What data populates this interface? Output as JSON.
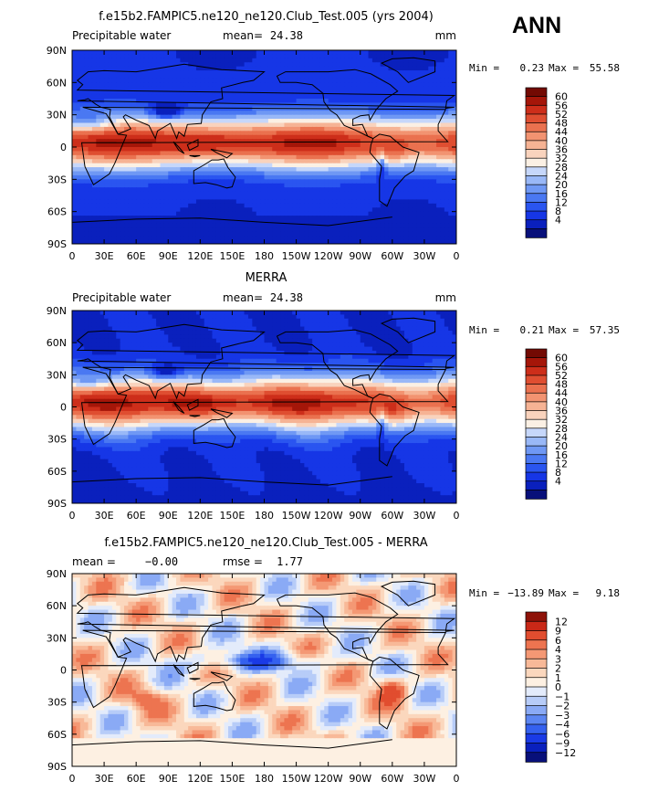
{
  "season": "ANN",
  "colors": {
    "abs_scale": [
      "#08107a",
      "#0a20bd",
      "#1636e6",
      "#2a55f0",
      "#4a78f2",
      "#6f98f4",
      "#99b8f7",
      "#c6d7fa",
      "#fbf0e4",
      "#f9d3bd",
      "#f6b394",
      "#f29371",
      "#ea714f",
      "#df4e31",
      "#cd2e1a",
      "#a51609",
      "#730a03"
    ],
    "diff_scale": [
      "#08107a",
      "#0a20bd",
      "#1a3ae6",
      "#3561ef",
      "#5c86f2",
      "#8aaaf5",
      "#b7ccf8",
      "#e3ebfb",
      "#fdf0e2",
      "#fbd7bd",
      "#f8b998",
      "#f49874",
      "#ed7450",
      "#e14d2f",
      "#c92817",
      "#8e1208"
    ]
  },
  "chart_data": [
    {
      "type": "heatmap",
      "title": "f.e15b2.FAMPIC5.ne120_ne120.Club_Test.005 (yrs 2004)",
      "left_label": "Precipitable water",
      "stat_label": "mean=",
      "stat_value": "24.38",
      "units": "mm",
      "x_ticks": [
        "0",
        "30E",
        "60E",
        "90E",
        "120E",
        "150E",
        "180",
        "150W",
        "120W",
        "90W",
        "60W",
        "30W",
        "0"
      ],
      "y_ticks": [
        "90N",
        "60N",
        "30N",
        "0",
        "30S",
        "60S",
        "90S"
      ],
      "min_label": "Min =",
      "min_value": "0.23",
      "max_label": "Max =",
      "max_value": "55.58",
      "colorbar_levels": [
        "60",
        "56",
        "52",
        "48",
        "44",
        "40",
        "36",
        "32",
        "28",
        "24",
        "20",
        "16",
        "12",
        "8",
        "4"
      ],
      "xlim": [
        0,
        360
      ],
      "ylim": [
        -90,
        90
      ]
    },
    {
      "type": "heatmap",
      "title": "MERRA",
      "left_label": "Precipitable water",
      "stat_label": "mean=",
      "stat_value": "24.38",
      "units": "mm",
      "x_ticks": [
        "0",
        "30E",
        "60E",
        "90E",
        "120E",
        "150E",
        "180",
        "150W",
        "120W",
        "90W",
        "60W",
        "30W",
        "0"
      ],
      "y_ticks": [
        "90N",
        "60N",
        "30N",
        "0",
        "30S",
        "60S",
        "90S"
      ],
      "min_label": "Min =",
      "min_value": "0.21",
      "max_label": "Max =",
      "max_value": "57.35",
      "colorbar_levels": [
        "60",
        "56",
        "52",
        "48",
        "44",
        "40",
        "36",
        "32",
        "28",
        "24",
        "20",
        "16",
        "12",
        "8",
        "4"
      ],
      "xlim": [
        0,
        360
      ],
      "ylim": [
        -90,
        90
      ]
    },
    {
      "type": "heatmap",
      "title": "f.e15b2.FAMPIC5.ne120_ne120.Club_Test.005 - MERRA",
      "left_label": "mean =",
      "left_value": "−0.00",
      "stat_label": "rmse =",
      "stat_value": "1.77",
      "units": "",
      "x_ticks": [
        "0",
        "30E",
        "60E",
        "90E",
        "120E",
        "150E",
        "180",
        "150W",
        "120W",
        "90W",
        "60W",
        "30W",
        "0"
      ],
      "y_ticks": [
        "90N",
        "60N",
        "30N",
        "0",
        "30S",
        "60S",
        "90S"
      ],
      "min_label": "Min =",
      "min_value": "−13.89",
      "max_label": "Max =",
      "max_value": "9.18",
      "colorbar_levels": [
        "12",
        "9",
        "6",
        "4",
        "3",
        "2",
        "1",
        "0",
        "−1",
        "−2",
        "−3",
        "−4",
        "−6",
        "−9",
        "−12"
      ],
      "xlim": [
        0,
        360
      ],
      "ylim": [
        -90,
        90
      ]
    }
  ]
}
